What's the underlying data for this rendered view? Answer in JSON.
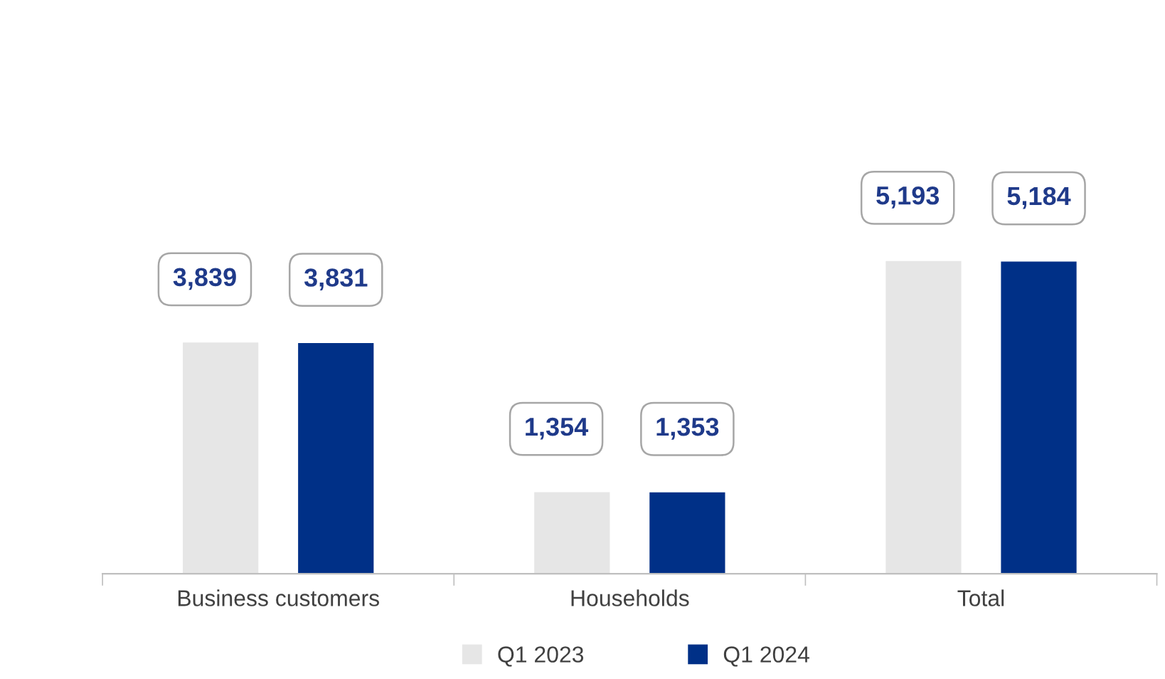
{
  "chart_data": {
    "type": "bar",
    "categories": [
      "Business customers",
      "Households",
      "Total"
    ],
    "series": [
      {
        "name": "Q1 2023",
        "color": "#e6e6e6",
        "values": [
          3839,
          1354,
          5193
        ],
        "value_labels": [
          "3,839",
          "1,354",
          "5,193"
        ]
      },
      {
        "name": "Q1 2024",
        "color": "#003087",
        "values": [
          3831,
          1353,
          5184
        ],
        "value_labels": [
          "3,831",
          "1,353",
          "5,184"
        ]
      }
    ],
    "legend": "bottom",
    "grid": false
  }
}
